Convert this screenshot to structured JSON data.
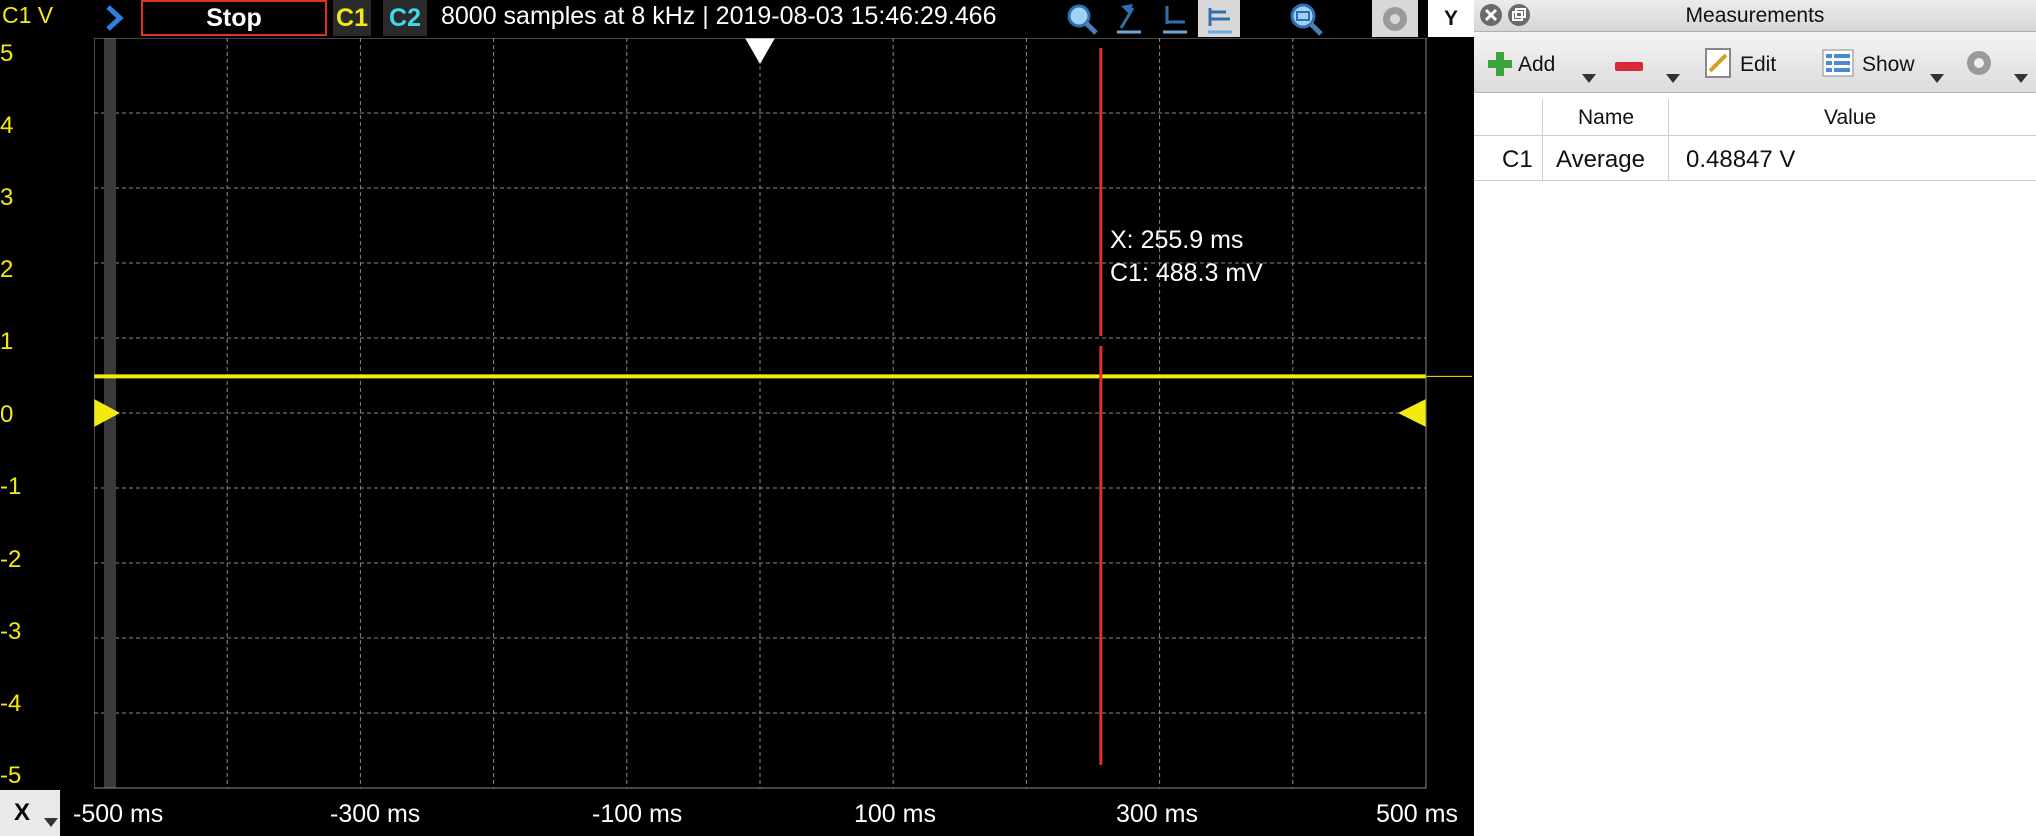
{
  "toolbar": {
    "channel_axis_label": "C1 V",
    "run_button_label": "Stop",
    "c1_label": "C1",
    "c2_label": "C2",
    "status_text": "8000 samples at 8 kHz | 2019-08-03 15:46:29.466",
    "y_button_label": "Y",
    "icons": [
      "play-arrow-icon",
      "zoom-icon",
      "cursor-icon",
      "baseline-icon",
      "scale-icon",
      "zoom-fit-icon",
      "gear-icon"
    ]
  },
  "plot": {
    "y_ticks": [
      "5",
      "4",
      "3",
      "2",
      "1",
      "0",
      "-1",
      "-2",
      "-3",
      "-4",
      "-5"
    ],
    "x_ticks": [
      "-500 ms",
      "-300 ms",
      "-100 ms",
      "100 ms",
      "300 ms",
      "500 ms"
    ],
    "x_button_label": "X",
    "cursor_readout": {
      "x": "X: 255.9 ms",
      "c1": "C1: 488.3 mV"
    },
    "colors": {
      "trace": "#f2ea10",
      "cursor": "#e0321c",
      "grid": "#8a8a8a"
    }
  },
  "chart_data": {
    "type": "line",
    "series": [
      {
        "name": "C1",
        "x": [
          -500,
          500
        ],
        "values": [
          0.488,
          0.488
        ]
      }
    ],
    "xlim": [
      -500,
      500
    ],
    "ylim": [
      -5,
      5
    ],
    "cursor_x": 255.9,
    "grid": true
  },
  "panel": {
    "title": "Measurements",
    "toolbar": {
      "add_label": "Add",
      "edit_label": "Edit",
      "show_label": "Show"
    },
    "columns": [
      "Name",
      "Value"
    ],
    "rows": [
      {
        "channel": "C1",
        "name": "Average",
        "value": "0.48847 V"
      }
    ]
  }
}
